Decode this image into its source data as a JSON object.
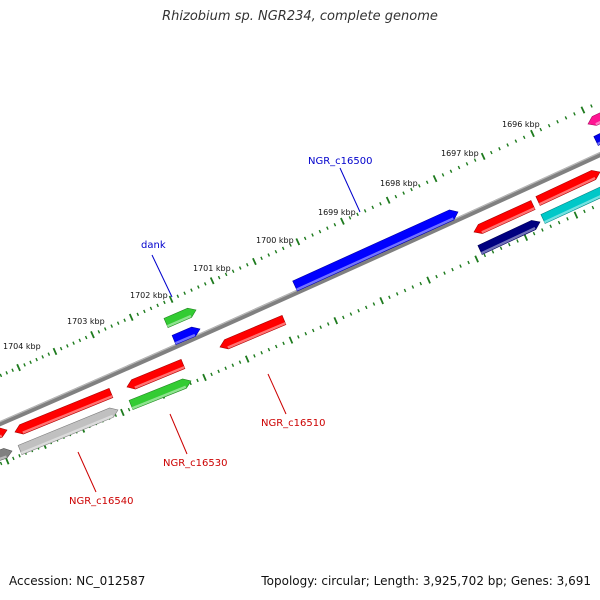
{
  "title": "Rhizobium sp. NGR234, complete genome",
  "footer": {
    "accession": "Accession: NC_012587",
    "summary": "Topology: circular; Length: 3,925,702 bp; Genes: 3,691"
  },
  "colors": {
    "backbone": "#808080",
    "ticks": "#1e7b1e",
    "label_plus": "#0000cc",
    "label_minus": "#cc0000"
  },
  "scale_labels": [
    "1696 kbp",
    "1697 kbp",
    "1698 kbp",
    "1699 kbp",
    "1700 kbp",
    "1701 kbp",
    "1702 kbp",
    "1703 kbp",
    "1704 kbp"
  ],
  "gene_labels": [
    {
      "id": "dank",
      "text": "dank",
      "strand": "plus"
    },
    {
      "id": "ngr-c16500",
      "text": "NGR_c16500",
      "strand": "plus"
    },
    {
      "id": "ngr-c16510",
      "text": "NGR_c16510",
      "strand": "minus"
    },
    {
      "id": "ngr-c16530",
      "text": "NGR_c16530",
      "strand": "minus"
    },
    {
      "id": "ngr-c16540",
      "text": "NGR_c16540",
      "strand": "minus"
    }
  ],
  "features": [
    {
      "color": "#ff1493",
      "dir": "left"
    },
    {
      "color": "#0000ee",
      "dir": "right"
    },
    {
      "color": "#ff0000",
      "dir": "right"
    },
    {
      "color": "#00c8c8",
      "dir": "right"
    },
    {
      "color": "#ff0000",
      "dir": "left"
    },
    {
      "color": "#000080",
      "dir": "right"
    },
    {
      "color": "#0000ff",
      "dir": "right"
    },
    {
      "color": "#ff0000",
      "dir": "left"
    },
    {
      "color": "#33cc33",
      "dir": "right"
    },
    {
      "color": "#0000ff",
      "dir": "right"
    },
    {
      "color": "#ff0000",
      "dir": "left"
    },
    {
      "color": "#33cc33",
      "dir": "right"
    },
    {
      "color": "#ff0000",
      "dir": "left"
    },
    {
      "color": "#c0c0c0",
      "dir": "right"
    },
    {
      "color": "#ff0000",
      "dir": "right"
    },
    {
      "color": "#808080",
      "dir": "right"
    }
  ]
}
